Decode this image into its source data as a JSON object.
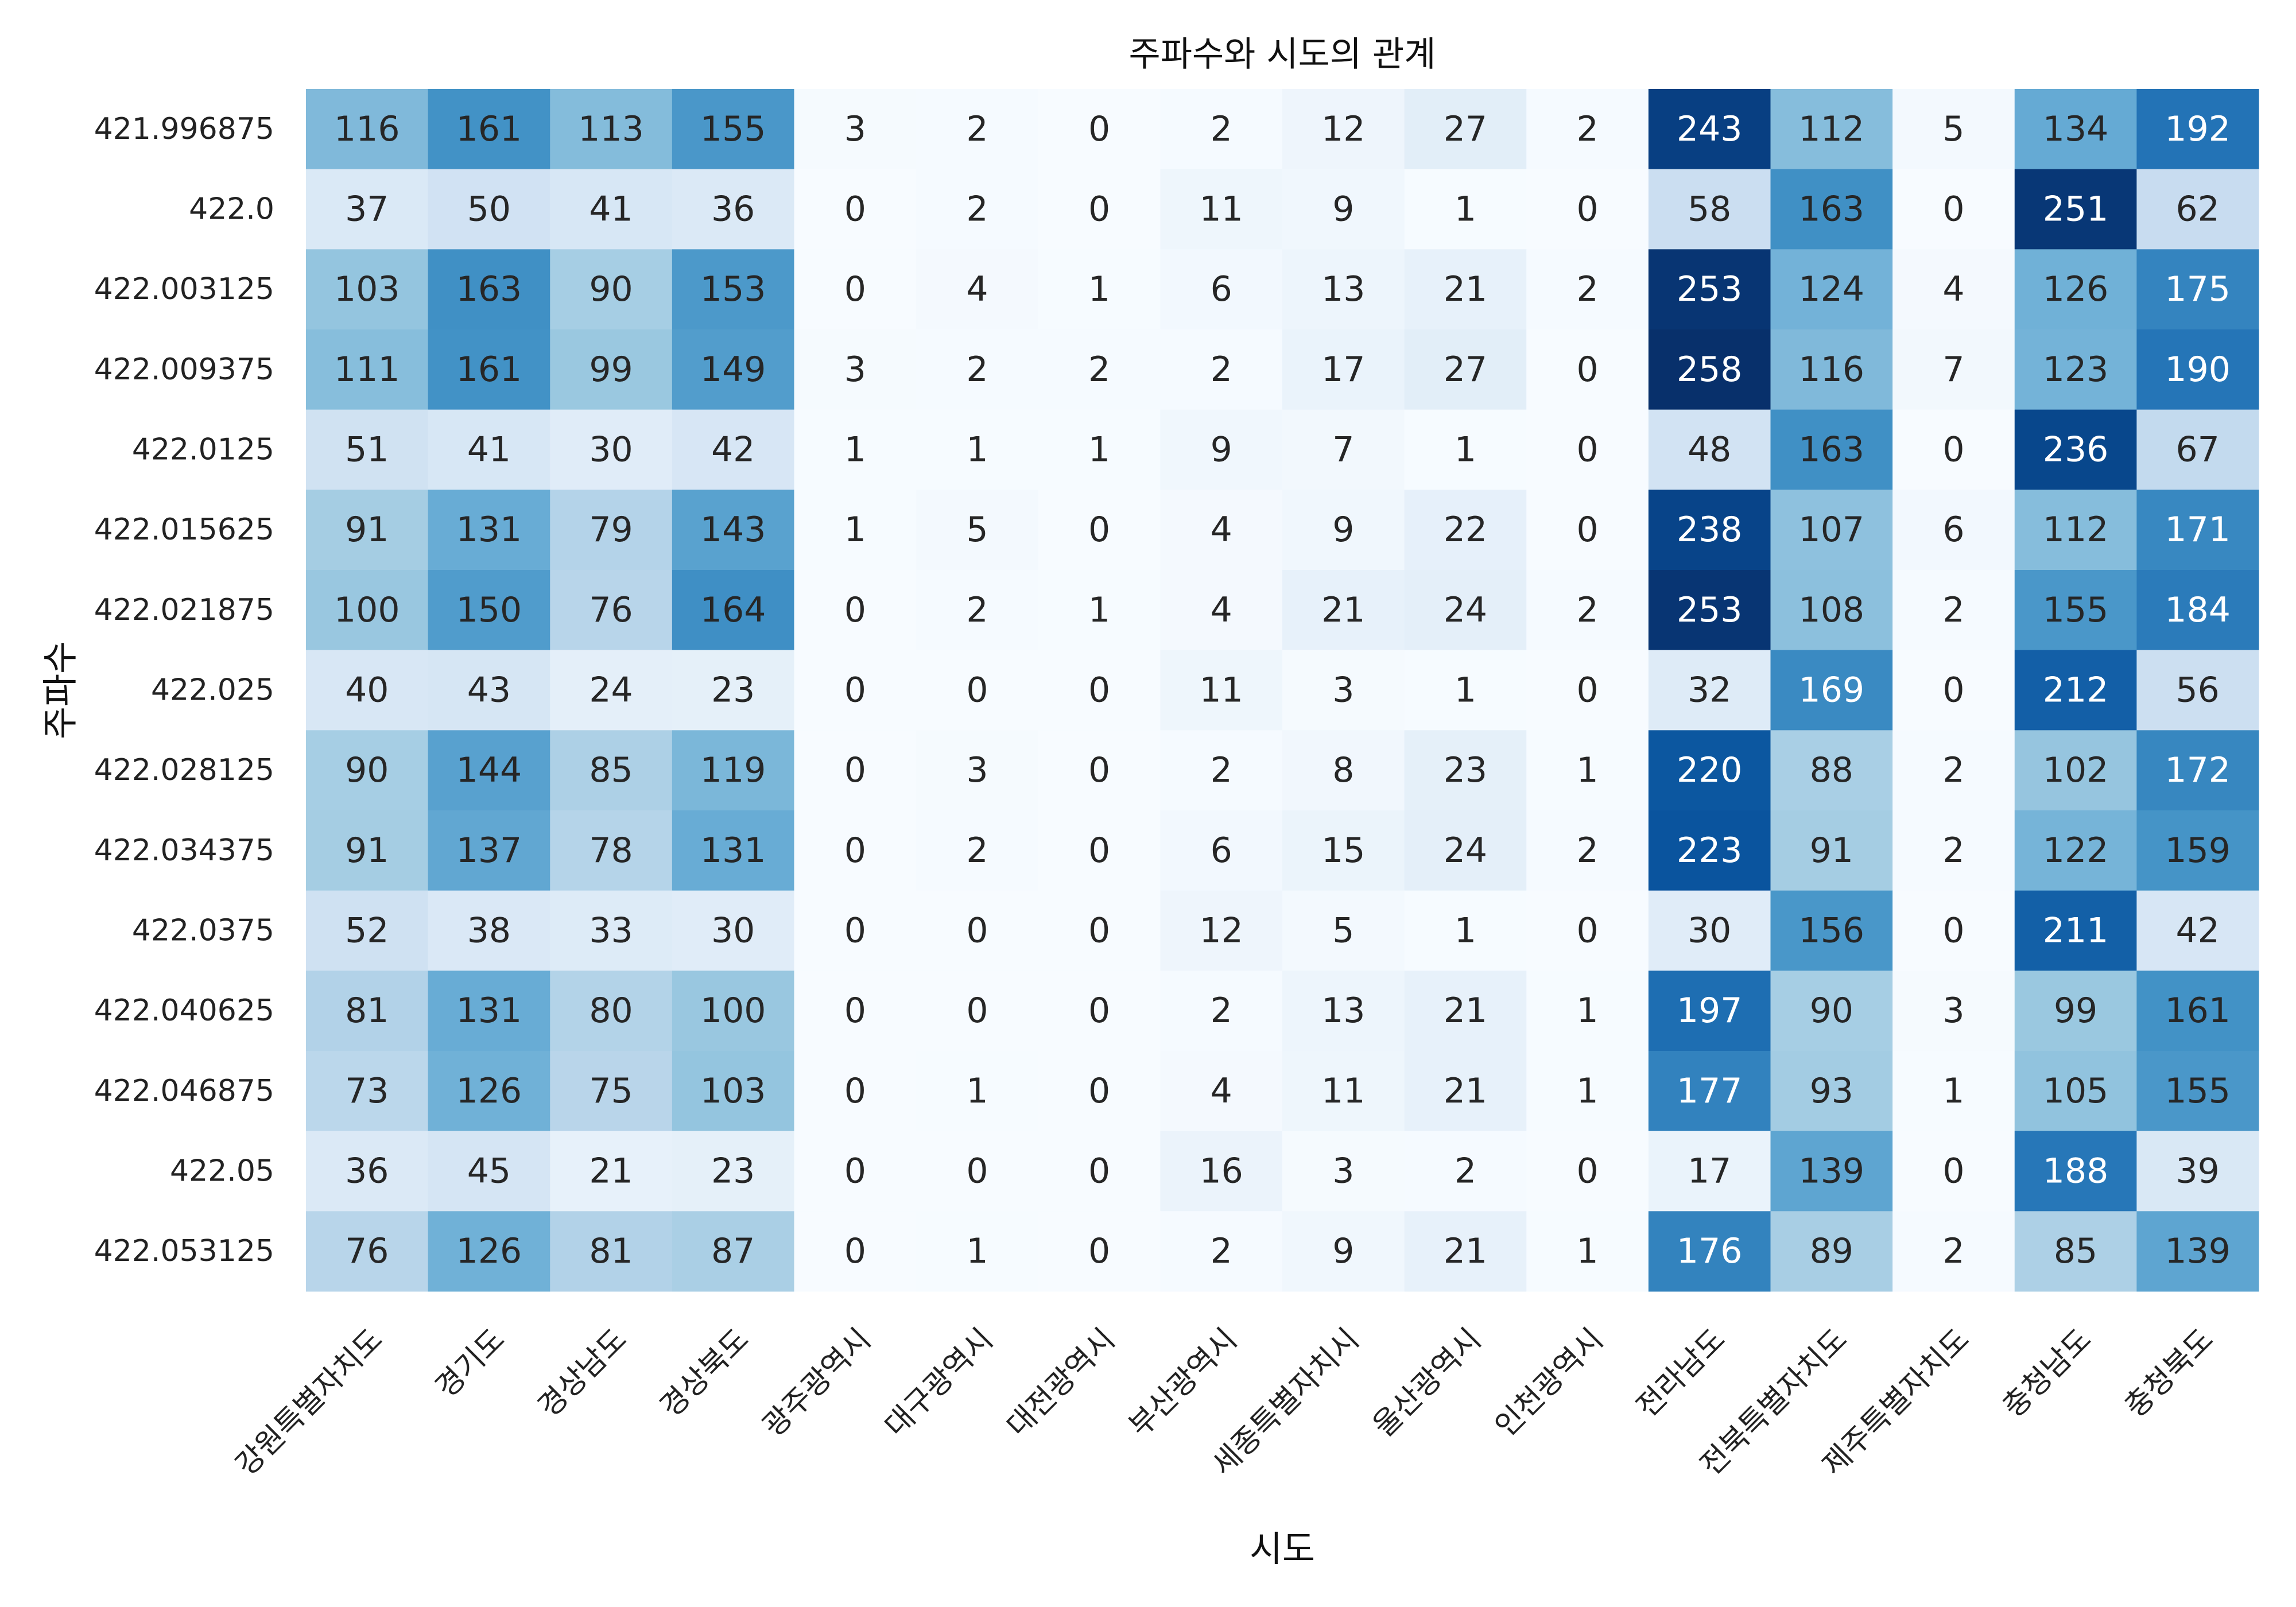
{
  "chart_data": {
    "type": "heatmap",
    "title": "주파수와 시도의 관계",
    "xlabel": "시도",
    "ylabel": "주파수",
    "colormap": "Blues",
    "color_range": [
      0,
      258
    ],
    "x": [
      "강원특별자치도",
      "경기도",
      "경상남도",
      "경상북도",
      "광주광역시",
      "대구광역시",
      "대전광역시",
      "부산광역시",
      "세종특별자치시",
      "울산광역시",
      "인천광역시",
      "전라남도",
      "전북특별자치도",
      "제주특별자치도",
      "충청남도",
      "충청북도"
    ],
    "y": [
      "421.996875",
      "422.0",
      "422.003125",
      "422.009375",
      "422.0125",
      "422.015625",
      "422.021875",
      "422.025",
      "422.028125",
      "422.034375",
      "422.0375",
      "422.040625",
      "422.046875",
      "422.05",
      "422.053125"
    ],
    "values": [
      [
        116,
        161,
        113,
        155,
        3,
        2,
        0,
        2,
        12,
        27,
        2,
        243,
        112,
        5,
        134,
        192
      ],
      [
        37,
        50,
        41,
        36,
        0,
        2,
        0,
        11,
        9,
        1,
        0,
        58,
        163,
        0,
        251,
        62
      ],
      [
        103,
        163,
        90,
        153,
        0,
        4,
        1,
        6,
        13,
        21,
        2,
        253,
        124,
        4,
        126,
        175
      ],
      [
        111,
        161,
        99,
        149,
        3,
        2,
        2,
        2,
        17,
        27,
        0,
        258,
        116,
        7,
        123,
        190
      ],
      [
        51,
        41,
        30,
        42,
        1,
        1,
        1,
        9,
        7,
        1,
        0,
        48,
        163,
        0,
        236,
        67
      ],
      [
        91,
        131,
        79,
        143,
        1,
        5,
        0,
        4,
        9,
        22,
        0,
        238,
        107,
        6,
        112,
        171
      ],
      [
        100,
        150,
        76,
        164,
        0,
        2,
        1,
        4,
        21,
        24,
        2,
        253,
        108,
        2,
        155,
        184
      ],
      [
        40,
        43,
        24,
        23,
        0,
        0,
        0,
        11,
        3,
        1,
        0,
        32,
        169,
        0,
        212,
        56
      ],
      [
        90,
        144,
        85,
        119,
        0,
        3,
        0,
        2,
        8,
        23,
        1,
        220,
        88,
        2,
        102,
        172
      ],
      [
        91,
        137,
        78,
        131,
        0,
        2,
        0,
        6,
        15,
        24,
        2,
        223,
        91,
        2,
        122,
        159
      ],
      [
        52,
        38,
        33,
        30,
        0,
        0,
        0,
        12,
        5,
        1,
        0,
        30,
        156,
        0,
        211,
        42
      ],
      [
        81,
        131,
        80,
        100,
        0,
        0,
        0,
        2,
        13,
        21,
        1,
        197,
        90,
        3,
        99,
        161
      ],
      [
        73,
        126,
        75,
        103,
        0,
        1,
        0,
        4,
        11,
        21,
        1,
        177,
        93,
        1,
        105,
        155
      ],
      [
        36,
        45,
        21,
        23,
        0,
        0,
        0,
        16,
        3,
        2,
        0,
        17,
        139,
        0,
        188,
        39
      ],
      [
        76,
        126,
        81,
        87,
        0,
        1,
        0,
        2,
        9,
        21,
        1,
        176,
        89,
        2,
        85,
        139
      ]
    ],
    "annotated": true,
    "colorbar": false
  }
}
